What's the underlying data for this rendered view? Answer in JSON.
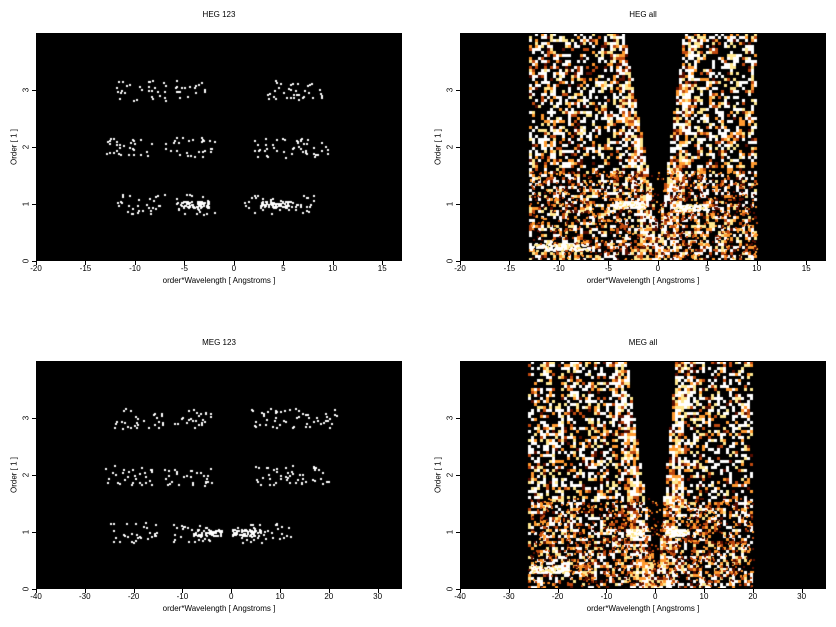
{
  "chart_data": [
    {
      "type": "heatmap",
      "title": "HEG 123",
      "xlabel": "order*Wavelength [ Angstroms ]",
      "ylabel": "Order [ 1 ]",
      "xlim": [
        -20,
        17
      ],
      "ylim": [
        0,
        4
      ],
      "xticks": [
        -20,
        -15,
        -10,
        -5,
        0,
        5,
        10,
        15
      ],
      "yticks": [
        0,
        1,
        2,
        3
      ],
      "colormap": [
        "#000000",
        "#5a0e00",
        "#c04a10",
        "#ff9a30",
        "#ffe890",
        "#ffffff"
      ],
      "mode": "sparse",
      "bands": [
        {
          "order": 1,
          "x_ranges": [
            [
              -12,
              -7
            ],
            [
              -6,
              -2
            ],
            [
              1,
              8
            ]
          ],
          "peaks": [
            [
              -4,
              1.0
            ],
            [
              4,
              1.0
            ]
          ]
        },
        {
          "order": 2,
          "x_ranges": [
            [
              -13,
              -8
            ],
            [
              -7,
              -2
            ],
            [
              2,
              10
            ]
          ]
        },
        {
          "order": 3,
          "x_ranges": [
            [
              -12,
              -7
            ],
            [
              -6,
              -3
            ],
            [
              3,
              9
            ]
          ]
        }
      ]
    },
    {
      "type": "heatmap",
      "title": "HEG all",
      "xlabel": "order*Wavelength [ Angstroms ]",
      "ylabel": "Order [ 1 ]",
      "xlim": [
        -20,
        17
      ],
      "ylim": [
        0,
        4
      ],
      "xticks": [
        -20,
        -15,
        -10,
        -5,
        0,
        5,
        10,
        15
      ],
      "yticks": [
        0,
        1,
        2,
        3
      ],
      "colormap": [
        "#000000",
        "#5a0e00",
        "#c04a10",
        "#ff9a30",
        "#ffe890",
        "#ffffff"
      ],
      "mode": "dense",
      "x_extent": [
        -13,
        10
      ],
      "wedge": {
        "x_at_top": [
          -3.5,
          2.5
        ],
        "apex_order": 0.5
      },
      "bright_lines": [
        {
          "x": [
            -4.5,
            -1.5
          ],
          "order": 1.0
        },
        {
          "x": [
            1.5,
            5
          ],
          "order": 0.95
        },
        {
          "x": [
            -13,
            -7
          ],
          "order": 0.25
        }
      ]
    },
    {
      "type": "heatmap",
      "title": "MEG 123",
      "xlabel": "order*Wavelength [ Angstroms ]",
      "ylabel": "Order [ 1 ]",
      "xlim": [
        -40,
        35
      ],
      "ylim": [
        0,
        4
      ],
      "xticks": [
        -40,
        -30,
        -20,
        -10,
        0,
        10,
        20,
        30
      ],
      "yticks": [
        0,
        1,
        2,
        3
      ],
      "colormap": [
        "#000000",
        "#5a0e00",
        "#c04a10",
        "#ff9a30",
        "#ffe890",
        "#ffffff"
      ],
      "mode": "sparse",
      "bands": [
        {
          "order": 1,
          "x_ranges": [
            [
              -25,
              -15
            ],
            [
              -12,
              -4
            ],
            [
              0,
              12
            ]
          ],
          "peaks": [
            [
              -5,
              1.0
            ],
            [
              3,
              1.0
            ]
          ]
        },
        {
          "order": 2,
          "x_ranges": [
            [
              -26,
              -16
            ],
            [
              -14,
              -4
            ],
            [
              4,
              20
            ]
          ]
        },
        {
          "order": 3,
          "x_ranges": [
            [
              -24,
              -14
            ],
            [
              -12,
              -4
            ],
            [
              4,
              22
            ]
          ]
        }
      ]
    },
    {
      "type": "heatmap",
      "title": "MEG all",
      "xlabel": "order*Wavelength [ Angstroms ]",
      "ylabel": "Order [ 1 ]",
      "xlim": [
        -40,
        35
      ],
      "ylim": [
        0,
        4
      ],
      "xticks": [
        -40,
        -30,
        -20,
        -10,
        0,
        10,
        20,
        30
      ],
      "yticks": [
        0,
        1,
        2,
        3
      ],
      "colormap": [
        "#000000",
        "#5a0e00",
        "#c04a10",
        "#ff9a30",
        "#ffe890",
        "#ffffff"
      ],
      "mode": "dense",
      "x_extent": [
        -26,
        20
      ],
      "wedge": {
        "x_at_top": [
          -6,
          4
        ],
        "apex_order": 0.1
      },
      "bright_lines": [
        {
          "x": [
            -6,
            -3
          ],
          "order": 1.0
        },
        {
          "x": [
            2,
            6
          ],
          "order": 1.0
        },
        {
          "x": [
            -26,
            -18
          ],
          "order": 0.35
        }
      ]
    }
  ]
}
